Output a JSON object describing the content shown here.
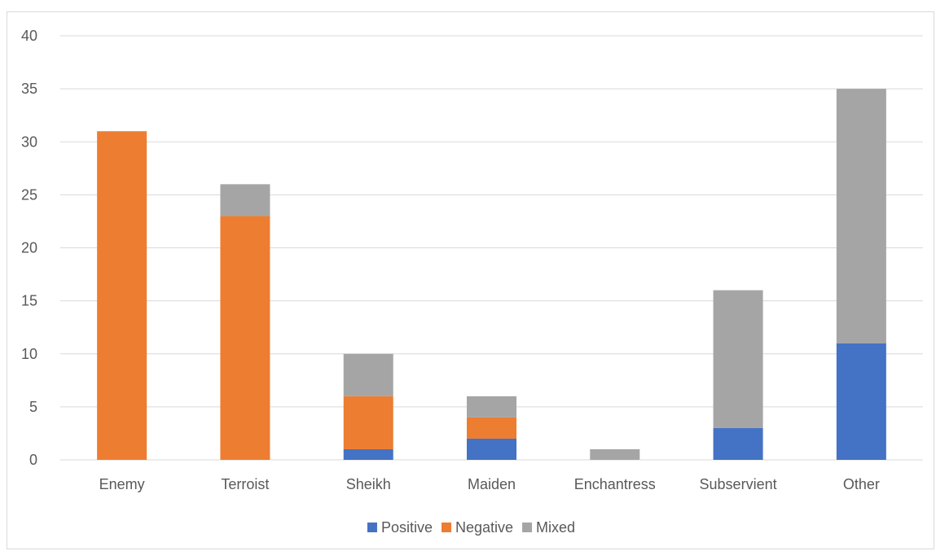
{
  "chart_data": {
    "type": "bar",
    "stacked": true,
    "categories": [
      "Enemy",
      "Terroist",
      "Sheikh",
      "Maiden",
      "Enchantress",
      "Subservient",
      "Other"
    ],
    "series": [
      {
        "name": "Positive",
        "values": [
          0,
          0,
          1,
          2,
          0,
          3,
          11
        ],
        "color": "#4472c4"
      },
      {
        "name": "Negative",
        "values": [
          31,
          23,
          5,
          2,
          0,
          0,
          0
        ],
        "color": "#ed7d31"
      },
      {
        "name": "Mixed",
        "values": [
          0,
          3,
          4,
          2,
          1,
          13,
          24
        ],
        "color": "#a5a5a5"
      }
    ],
    "ylim": [
      0,
      40
    ],
    "yticks": [
      "0",
      "5",
      "10",
      "15",
      "20",
      "25",
      "30",
      "35",
      "40"
    ],
    "grid": true,
    "legend": "bottom",
    "title": "",
    "xlabel": "",
    "ylabel": ""
  }
}
